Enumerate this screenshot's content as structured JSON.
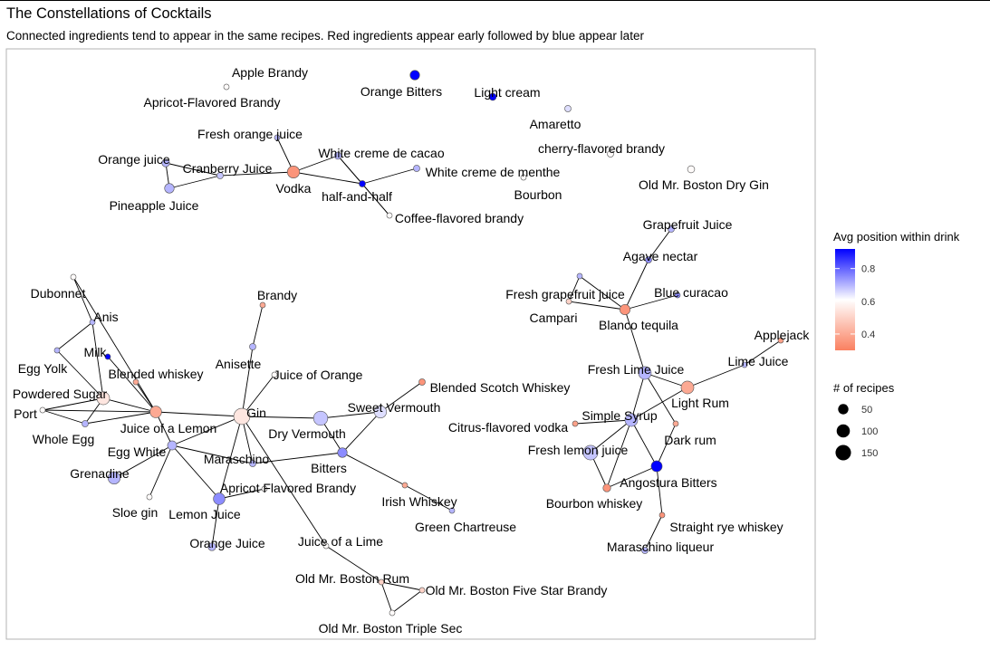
{
  "title": "The Constellations of Cocktails",
  "subtitle": "Connected ingredients tend to appear in the same recipes. Red ingredients appear early followed by blue appear later",
  "chart_data": {
    "type": "network",
    "legend": {
      "placement": "right",
      "color": {
        "title": "Avg position within drink",
        "ticks": [
          0.4,
          0.6,
          0.8
        ],
        "domain": [
          0.3,
          0.92
        ],
        "low_color": "#fa8060",
        "mid_color": "#ffffff",
        "high_color": "#0000ff"
      },
      "size": {
        "title": "# of recipes",
        "ticks": [
          50,
          100,
          150
        ]
      }
    },
    "nodes": [
      {
        "id": "apple_brandy",
        "label": "Apple Brandy",
        "avg_position": 0.6,
        "recipes": 2
      },
      {
        "id": "apricot_fb",
        "label": "Apricot-Flavored Brandy",
        "avg_position": 0.6,
        "recipes": 5
      },
      {
        "id": "orange_bitters",
        "label": "Orange Bitters",
        "avg_position": 0.92,
        "recipes": 40
      },
      {
        "id": "light_cream",
        "label": "Light cream",
        "avg_position": 0.92,
        "recipes": 15
      },
      {
        "id": "amaretto",
        "label": "Amaretto",
        "avg_position": 0.65,
        "recipes": 10
      },
      {
        "id": "cherry_fb",
        "label": "cherry-flavored brandy",
        "avg_position": 0.6,
        "recipes": 10
      },
      {
        "id": "old_boston_gin",
        "label": "Old Mr. Boston Dry Gin",
        "avg_position": 0.6,
        "recipes": 15
      },
      {
        "id": "bourbon",
        "label": "Bourbon",
        "avg_position": 0.6,
        "recipes": 5
      },
      {
        "id": "fresh_oj",
        "label": "Fresh orange juice",
        "avg_position": 0.7,
        "recipes": 5
      },
      {
        "id": "white_cdc",
        "label": "White creme de cacao",
        "avg_position": 0.7,
        "recipes": 15
      },
      {
        "id": "white_cdm",
        "label": "White creme de menthe",
        "avg_position": 0.7,
        "recipes": 10
      },
      {
        "id": "orange_juice_top",
        "label": "Orange juice",
        "avg_position": 0.7,
        "recipes": 20
      },
      {
        "id": "cranberry",
        "label": "Cranberry Juice",
        "avg_position": 0.68,
        "recipes": 10
      },
      {
        "id": "vodka",
        "label": "Vodka",
        "avg_position": 0.35,
        "recipes": 80
      },
      {
        "id": "half_and_half",
        "label": "half-and-half",
        "avg_position": 0.92,
        "recipes": 10
      },
      {
        "id": "pineapple",
        "label": "Pineapple Juice",
        "avg_position": 0.7,
        "recipes": 40
      },
      {
        "id": "coffee_fb",
        "label": "Coffee-flavored brandy",
        "avg_position": 0.6,
        "recipes": 5
      },
      {
        "id": "grapefruit",
        "label": "Grapefruit Juice",
        "avg_position": 0.7,
        "recipes": 10
      },
      {
        "id": "agave",
        "label": "Agave nectar",
        "avg_position": 0.75,
        "recipes": 10
      },
      {
        "id": "fresh_grapefruit",
        "label": "Fresh grapefruit juice",
        "avg_position": 0.7,
        "recipes": 5
      },
      {
        "id": "blue_curacao",
        "label": "Blue curacao",
        "avg_position": 0.75,
        "recipes": 5
      },
      {
        "id": "campari",
        "label": "Campari",
        "avg_position": 0.5,
        "recipes": 5
      },
      {
        "id": "blanco_tequila",
        "label": "Blanco tequila",
        "avg_position": 0.35,
        "recipes": 50
      },
      {
        "id": "applejack",
        "label": "Applejack",
        "avg_position": 0.38,
        "recipes": 5
      },
      {
        "id": "lime_juice",
        "label": "Lime Juice",
        "avg_position": 0.7,
        "recipes": 5
      },
      {
        "id": "fresh_lime",
        "label": "Fresh Lime Juice",
        "avg_position": 0.7,
        "recipes": 90
      },
      {
        "id": "light_rum",
        "label": "Light Rum",
        "avg_position": 0.4,
        "recipes": 90
      },
      {
        "id": "citrus_vodka",
        "label": "Citrus-flavored vodka",
        "avg_position": 0.38,
        "recipes": 5
      },
      {
        "id": "simple_syrup",
        "label": "Simple Syrup",
        "avg_position": 0.7,
        "recipes": 90
      },
      {
        "id": "dark_rum",
        "label": "Dark rum",
        "avg_position": 0.4,
        "recipes": 5
      },
      {
        "id": "fresh_lemon",
        "label": "Fresh lemon juice",
        "avg_position": 0.68,
        "recipes": 130
      },
      {
        "id": "angostura",
        "label": "Angostura Bitters",
        "avg_position": 0.92,
        "recipes": 60
      },
      {
        "id": "bourbon_whiskey",
        "label": "Bourbon whiskey",
        "avg_position": 0.35,
        "recipes": 20
      },
      {
        "id": "straight_rye",
        "label": "Straight rye whiskey",
        "avg_position": 0.35,
        "recipes": 5
      },
      {
        "id": "maraschino_liqueur",
        "label": "Maraschino liqueur",
        "avg_position": 0.7,
        "recipes": 10
      },
      {
        "id": "dubonnet",
        "label": "Dubonnet",
        "avg_position": 0.6,
        "recipes": 5
      },
      {
        "id": "anis",
        "label": "Anis",
        "avg_position": 0.7,
        "recipes": 5
      },
      {
        "id": "milk",
        "label": "Milk",
        "avg_position": 0.92,
        "recipes": 5
      },
      {
        "id": "egg_yolk",
        "label": "Egg Yolk",
        "avg_position": 0.7,
        "recipes": 5
      },
      {
        "id": "blended_whiskey",
        "label": "Blended whiskey",
        "avg_position": 0.4,
        "recipes": 5
      },
      {
        "id": "powdered_sugar",
        "label": "Powdered Sugar",
        "avg_position": 0.55,
        "recipes": 90
      },
      {
        "id": "port",
        "label": "Port",
        "avg_position": 0.6,
        "recipes": 5
      },
      {
        "id": "whole_egg",
        "label": "Whole Egg",
        "avg_position": 0.7,
        "recipes": 10
      },
      {
        "id": "juice_lemon",
        "label": "Juice of a Lemon",
        "avg_position": 0.4,
        "recipes": 70
      },
      {
        "id": "egg_white",
        "label": "Egg White",
        "avg_position": 0.7,
        "recipes": 35
      },
      {
        "id": "grenadine",
        "label": "Grenadine",
        "avg_position": 0.7,
        "recipes": 80
      },
      {
        "id": "sloe_gin",
        "label": "Sloe gin",
        "avg_position": 0.6,
        "recipes": 5
      },
      {
        "id": "brandy",
        "label": "Brandy",
        "avg_position": 0.4,
        "recipes": 5
      },
      {
        "id": "anisette",
        "label": "Anisette",
        "avg_position": 0.7,
        "recipes": 10
      },
      {
        "id": "juice_orange",
        "label": "Juice of Orange",
        "avg_position": 0.6,
        "recipes": 5
      },
      {
        "id": "gin",
        "label": "Gin",
        "avg_position": 0.55,
        "recipes": 170
      },
      {
        "id": "maraschino",
        "label": "Maraschino",
        "avg_position": 0.7,
        "recipes": 10
      },
      {
        "id": "dry_vermouth",
        "label": "Dry Vermouth",
        "avg_position": 0.68,
        "recipes": 120
      },
      {
        "id": "sweet_vermouth",
        "label": "Sweet Vermouth",
        "avg_position": 0.65,
        "recipes": 80
      },
      {
        "id": "blended_scotch",
        "label": "Blended Scotch Whiskey",
        "avg_position": 0.35,
        "recipes": 10
      },
      {
        "id": "bitters",
        "label": "Bitters",
        "avg_position": 0.75,
        "recipes": 40
      },
      {
        "id": "apricot_flavored_brandy",
        "label": "Apricot Flavored Brandy",
        "avg_position": 0.6,
        "recipes": 5
      },
      {
        "id": "lemon_juice",
        "label": "Lemon Juice",
        "avg_position": 0.75,
        "recipes": 70
      },
      {
        "id": "irish_whiskey",
        "label": "Irish Whiskey",
        "avg_position": 0.4,
        "recipes": 5
      },
      {
        "id": "green_chartreuse",
        "label": "Green Chartreuse",
        "avg_position": 0.7,
        "recipes": 5
      },
      {
        "id": "orange_juice",
        "label": "Orange Juice",
        "avg_position": 0.7,
        "recipes": 20
      },
      {
        "id": "juice_lime",
        "label": "Juice of a Lime",
        "avg_position": 0.6,
        "recipes": 5
      },
      {
        "id": "boston_rum",
        "label": "Old Mr. Boston Rum",
        "avg_position": 0.5,
        "recipes": 5
      },
      {
        "id": "boston_brandy",
        "label": "Old Mr. Boston Five Star Brandy",
        "avg_position": 0.5,
        "recipes": 5
      },
      {
        "id": "boston_triple",
        "label": "Old Mr. Boston Triple Sec",
        "avg_position": 0.6,
        "recipes": 5
      }
    ],
    "edges": [
      [
        "apple_brandy",
        "apricot_fb"
      ],
      [
        "fresh_oj",
        "vodka"
      ],
      [
        "orange_juice_top",
        "cranberry"
      ],
      [
        "orange_juice_top",
        "pineapple"
      ],
      [
        "cranberry",
        "pineapple"
      ],
      [
        "cranberry",
        "vodka"
      ],
      [
        "vodka",
        "white_cdc"
      ],
      [
        "vodka",
        "half_and_half"
      ],
      [
        "white_cdc",
        "half_and_half"
      ],
      [
        "white_cdc",
        "coffee_fb"
      ],
      [
        "half_and_half",
        "white_cdm"
      ],
      [
        "half_and_half",
        "coffee_fb"
      ],
      [
        "grapefruit",
        "agave"
      ],
      [
        "agave",
        "blanco_tequila"
      ],
      [
        "fresh_grapefruit",
        "campari"
      ],
      [
        "fresh_grapefruit",
        "blanco_tequila"
      ],
      [
        "campari",
        "blanco_tequila"
      ],
      [
        "blanco_tequila",
        "blue_curacao"
      ],
      [
        "blanco_tequila",
        "fresh_lime"
      ],
      [
        "fresh_lime",
        "light_rum"
      ],
      [
        "fresh_lime",
        "simple_syrup"
      ],
      [
        "fresh_lime",
        "dark_rum"
      ],
      [
        "light_rum",
        "lime_juice"
      ],
      [
        "lime_juice",
        "applejack"
      ],
      [
        "simple_syrup",
        "citrus_vodka"
      ],
      [
        "simple_syrup",
        "fresh_lemon"
      ],
      [
        "simple_syrup",
        "bourbon_whiskey"
      ],
      [
        "simple_syrup",
        "angostura"
      ],
      [
        "light_rum",
        "simple_syrup"
      ],
      [
        "dark_rum",
        "angostura"
      ],
      [
        "fresh_lemon",
        "bourbon_whiskey"
      ],
      [
        "angostura",
        "bourbon_whiskey"
      ],
      [
        "angostura",
        "straight_rye"
      ],
      [
        "straight_rye",
        "maraschino_liqueur"
      ],
      [
        "dubonnet",
        "anis"
      ],
      [
        "anis",
        "egg_yolk"
      ],
      [
        "anis",
        "powdered_sugar"
      ],
      [
        "dubonnet",
        "juice_lemon"
      ],
      [
        "milk",
        "juice_lemon"
      ],
      [
        "egg_yolk",
        "powdered_sugar"
      ],
      [
        "powdered_sugar",
        "port"
      ],
      [
        "powdered_sugar",
        "whole_egg"
      ],
      [
        "powdered_sugar",
        "juice_lemon"
      ],
      [
        "port",
        "whole_egg"
      ],
      [
        "port",
        "juice_lemon"
      ],
      [
        "whole_egg",
        "juice_lemon"
      ],
      [
        "blended_whiskey",
        "juice_lemon"
      ],
      [
        "juice_lemon",
        "gin"
      ],
      [
        "juice_lemon",
        "egg_white"
      ],
      [
        "egg_white",
        "grenadine"
      ],
      [
        "egg_white",
        "sloe_gin"
      ],
      [
        "egg_white",
        "gin"
      ],
      [
        "egg_white",
        "lemon_juice"
      ],
      [
        "egg_white",
        "maraschino"
      ],
      [
        "brandy",
        "anisette"
      ],
      [
        "anisette",
        "gin"
      ],
      [
        "juice_orange",
        "gin"
      ],
      [
        "gin",
        "dry_vermouth"
      ],
      [
        "gin",
        "lemon_juice"
      ],
      [
        "gin",
        "juice_lime"
      ],
      [
        "gin",
        "maraschino"
      ],
      [
        "dry_vermouth",
        "sweet_vermouth"
      ],
      [
        "dry_vermouth",
        "bitters"
      ],
      [
        "sweet_vermouth",
        "blended_scotch"
      ],
      [
        "sweet_vermouth",
        "bitters"
      ],
      [
        "maraschino",
        "bitters"
      ],
      [
        "bitters",
        "irish_whiskey"
      ],
      [
        "irish_whiskey",
        "green_chartreuse"
      ],
      [
        "lemon_juice",
        "apricot_flavored_brandy"
      ],
      [
        "lemon_juice",
        "orange_juice"
      ],
      [
        "juice_lime",
        "boston_rum"
      ],
      [
        "boston_rum",
        "boston_brandy"
      ],
      [
        "boston_rum",
        "boston_triple"
      ],
      [
        "boston_brandy",
        "boston_triple"
      ]
    ]
  }
}
